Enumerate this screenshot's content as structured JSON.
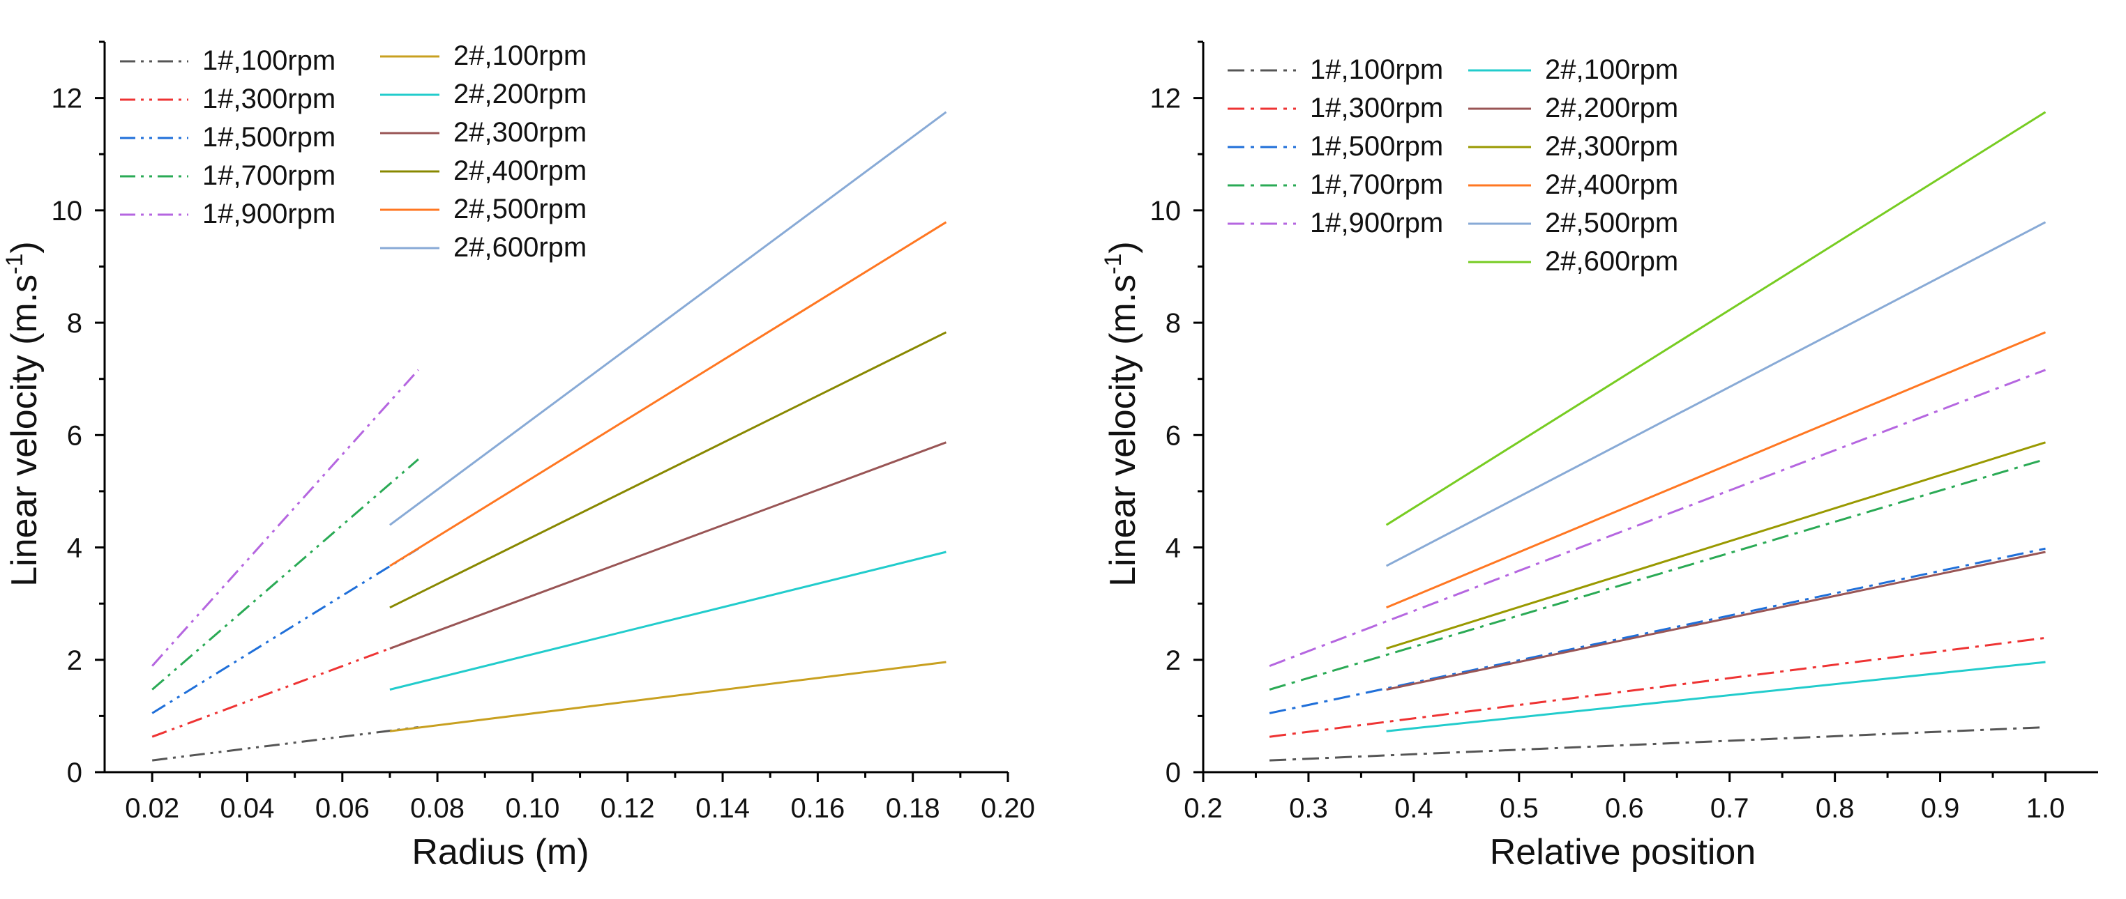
{
  "chart_data": [
    {
      "type": "line",
      "xlabel": "Radius (m)",
      "ylabel_main": "Linear velocity (m.s",
      "ylabel_sup": "-1",
      "ylabel_end": ")",
      "xlim": [
        0.01,
        0.2
      ],
      "ylim": [
        0,
        13
      ],
      "xticks": [
        0.02,
        0.04,
        0.06,
        0.08,
        0.1,
        0.12,
        0.14,
        0.16,
        0.18,
        0.2
      ],
      "xtick_labels": [
        "0.02",
        "0.04",
        "0.06",
        "0.08",
        "0.10",
        "0.12",
        "0.14",
        "0.16",
        "0.18",
        "0.20"
      ],
      "yticks": [
        0,
        2,
        4,
        6,
        8,
        10,
        12
      ],
      "ytick_labels": [
        "0",
        "2",
        "4",
        "6",
        "8",
        "10",
        "12"
      ],
      "legend_location": "top-left",
      "series": [
        {
          "name": "1#,100rpm",
          "color": "#555555",
          "style": "dashdotdot",
          "x": [
            0.02,
            0.076
          ],
          "y": [
            0.21,
            0.8
          ]
        },
        {
          "name": "1#,300rpm",
          "color": "#ee3333",
          "style": "dashdotdot",
          "x": [
            0.02,
            0.076
          ],
          "y": [
            0.63,
            2.39
          ]
        },
        {
          "name": "1#,500rpm",
          "color": "#1f6fd9",
          "style": "dashdotdot",
          "x": [
            0.02,
            0.076
          ],
          "y": [
            1.05,
            3.98
          ]
        },
        {
          "name": "1#,700rpm",
          "color": "#2aaa55",
          "style": "dashdotdot",
          "x": [
            0.02,
            0.076
          ],
          "y": [
            1.47,
            5.57
          ]
        },
        {
          "name": "1#,900rpm",
          "color": "#b566e0",
          "style": "dashdotdot",
          "x": [
            0.02,
            0.076
          ],
          "y": [
            1.89,
            7.16
          ]
        },
        {
          "name": "2#,100rpm",
          "color": "#c8a020",
          "style": "solid",
          "x": [
            0.07,
            0.187
          ],
          "y": [
            0.73,
            1.96
          ]
        },
        {
          "name": "2#,200rpm",
          "color": "#22cccc",
          "style": "solid",
          "x": [
            0.07,
            0.187
          ],
          "y": [
            1.47,
            3.92
          ]
        },
        {
          "name": "2#,300rpm",
          "color": "#995555",
          "style": "solid",
          "x": [
            0.07,
            0.187
          ],
          "y": [
            2.2,
            5.87
          ]
        },
        {
          "name": "2#,400rpm",
          "color": "#888800",
          "style": "solid",
          "x": [
            0.07,
            0.187
          ],
          "y": [
            2.93,
            7.83
          ]
        },
        {
          "name": "2#,500rpm",
          "color": "#ff7722",
          "style": "solid",
          "x": [
            0.07,
            0.187
          ],
          "y": [
            3.67,
            9.79
          ]
        },
        {
          "name": "2#,600rpm",
          "color": "#88aad6",
          "style": "solid",
          "x": [
            0.07,
            0.187
          ],
          "y": [
            4.4,
            11.75
          ]
        }
      ]
    },
    {
      "type": "line",
      "xlabel": "Relative position",
      "ylabel_main": "Linear velocity (m.s",
      "ylabel_sup": "-1",
      "ylabel_end": ")",
      "xlim": [
        0.2,
        1.05
      ],
      "ylim": [
        0,
        13
      ],
      "xticks": [
        0.2,
        0.3,
        0.4,
        0.5,
        0.6,
        0.7,
        0.8,
        0.9,
        1.0
      ],
      "xtick_labels": [
        "0.2",
        "0.3",
        "0.4",
        "0.5",
        "0.6",
        "0.7",
        "0.8",
        "0.9",
        "1.0"
      ],
      "yticks": [
        0,
        2,
        4,
        6,
        8,
        10,
        12
      ],
      "ytick_labels": [
        "0",
        "2",
        "4",
        "6",
        "8",
        "10",
        "12"
      ],
      "legend_location": "top-left",
      "series": [
        {
          "name": "1#,100rpm",
          "color": "#555555",
          "style": "dashdot",
          "x": [
            0.263,
            1.0
          ],
          "y": [
            0.21,
            0.8
          ]
        },
        {
          "name": "1#,300rpm",
          "color": "#ee3333",
          "style": "dashdot",
          "x": [
            0.263,
            1.0
          ],
          "y": [
            0.63,
            2.39
          ]
        },
        {
          "name": "1#,500rpm",
          "color": "#1f6fd9",
          "style": "dashdot",
          "x": [
            0.263,
            1.0
          ],
          "y": [
            1.05,
            3.98
          ]
        },
        {
          "name": "1#,700rpm",
          "color": "#2aaa55",
          "style": "dashdot",
          "x": [
            0.263,
            1.0
          ],
          "y": [
            1.47,
            5.57
          ]
        },
        {
          "name": "1#,900rpm",
          "color": "#b566e0",
          "style": "dashdot",
          "x": [
            0.263,
            1.0
          ],
          "y": [
            1.89,
            7.16
          ]
        },
        {
          "name": "2#,100rpm",
          "color": "#22cccc",
          "style": "solid",
          "x": [
            0.374,
            1.0
          ],
          "y": [
            0.73,
            1.96
          ]
        },
        {
          "name": "2#,200rpm",
          "color": "#995555",
          "style": "solid",
          "x": [
            0.374,
            1.0
          ],
          "y": [
            1.47,
            3.92
          ]
        },
        {
          "name": "2#,300rpm",
          "color": "#999900",
          "style": "solid",
          "x": [
            0.374,
            1.0
          ],
          "y": [
            2.2,
            5.87
          ]
        },
        {
          "name": "2#,400rpm",
          "color": "#ff7722",
          "style": "solid",
          "x": [
            0.374,
            1.0
          ],
          "y": [
            2.93,
            7.83
          ]
        },
        {
          "name": "2#,500rpm",
          "color": "#88aad6",
          "style": "solid",
          "x": [
            0.374,
            1.0
          ],
          "y": [
            3.67,
            9.79
          ]
        },
        {
          "name": "2#,600rpm",
          "color": "#77cc22",
          "style": "solid",
          "x": [
            0.374,
            1.0
          ],
          "y": [
            4.4,
            11.75
          ]
        }
      ]
    }
  ]
}
